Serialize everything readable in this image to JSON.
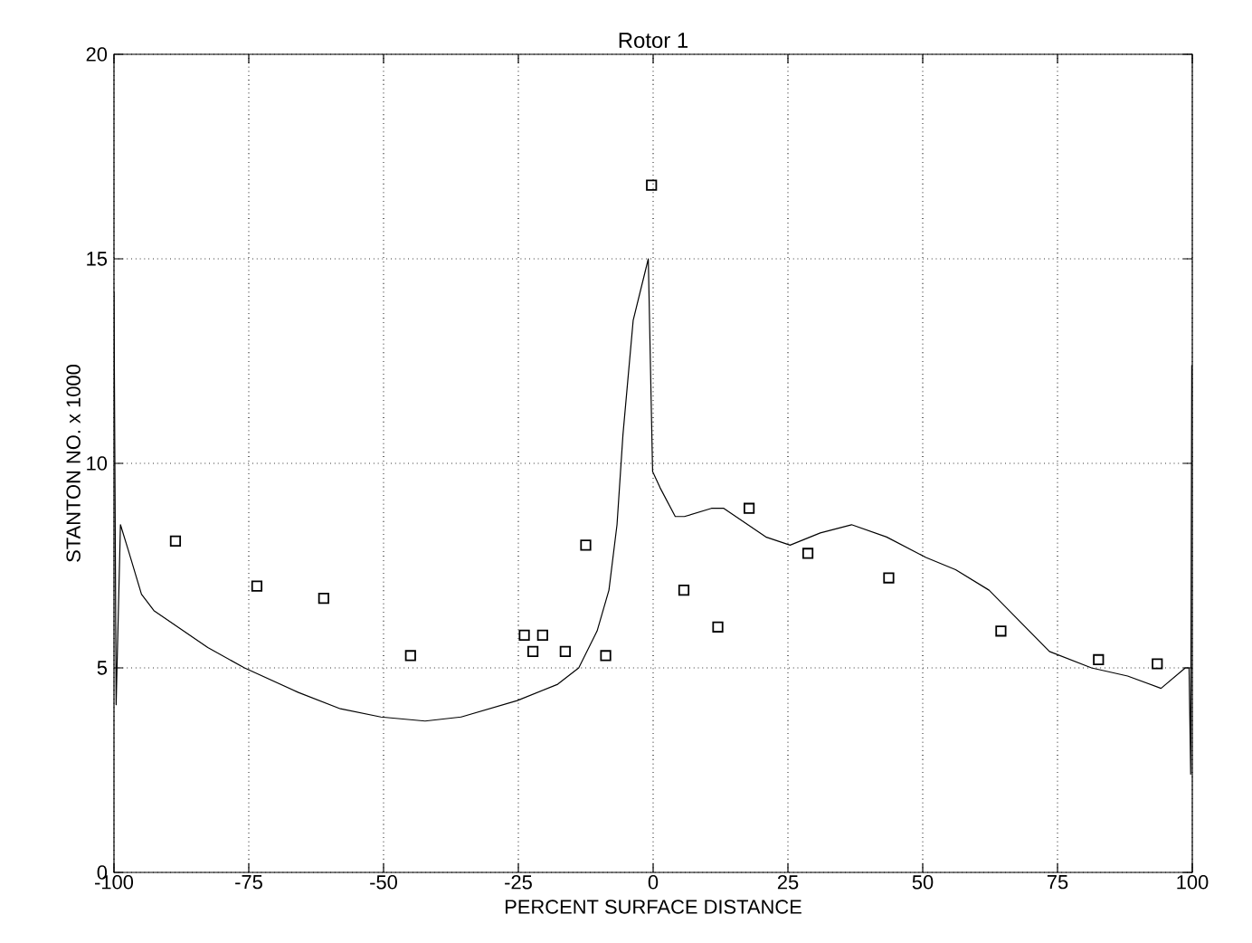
{
  "chart_data": {
    "type": "line",
    "title": "Rotor 1",
    "xlabel": "PERCENT SURFACE DISTANCE",
    "ylabel": "STANTON NO. x 1000",
    "xlim": [
      -100,
      100
    ],
    "ylim": [
      0,
      20
    ],
    "xticks": [
      -100,
      -75,
      -50,
      -25,
      0,
      25,
      50,
      75,
      100
    ],
    "yticks": [
      0,
      5,
      10,
      15,
      20
    ],
    "grid": true,
    "series": [
      {
        "color": "#000000",
        "marker": "none",
        "line_style": "solid",
        "x": [
          -100,
          -99.6,
          -98.8,
          -97.4,
          -94.9,
          -92.6,
          -82.6,
          -75.8,
          -65.8,
          -58.0,
          -50.5,
          -42.3,
          -35.6,
          -25.2,
          -17.7,
          -13.8,
          -10.4,
          -8.2,
          -6.7,
          -5.6,
          -3.7,
          -0.9,
          -0.1,
          1.3,
          4.1,
          5.8,
          10.8,
          13.1,
          20.9,
          25.4,
          31.0,
          36.8,
          43.3,
          50.6,
          56.1,
          62.3,
          73.5,
          81.3,
          88.0,
          94.2,
          98.7,
          99.4,
          99.7,
          99.9
        ],
        "values": [
          14.2,
          4.1,
          8.5,
          7.9,
          6.8,
          6.4,
          5.5,
          5.0,
          4.4,
          4.0,
          3.8,
          3.7,
          3.8,
          4.2,
          4.6,
          5.0,
          5.9,
          6.9,
          8.5,
          10.7,
          13.5,
          15.0,
          9.8,
          9.4,
          8.7,
          8.7,
          8.9,
          8.9,
          8.2,
          8.0,
          8.3,
          8.5,
          8.2,
          7.7,
          7.4,
          6.9,
          5.4,
          5.0,
          4.8,
          4.5,
          5.0,
          5.0,
          2.4,
          12.4
        ]
      },
      {
        "type": "scatter",
        "color": "#000000",
        "marker": "square",
        "x": [
          -88.6,
          -73.5,
          -61.1,
          -45.0,
          -23.9,
          -22.3,
          -20.5,
          -16.3,
          -12.5,
          -8.8,
          -0.3,
          5.7,
          12.0,
          17.8,
          28.7,
          43.7,
          64.5,
          82.6,
          93.5
        ],
        "values": [
          8.1,
          7.0,
          6.7,
          5.3,
          5.8,
          5.4,
          5.8,
          5.4,
          8.0,
          5.3,
          16.8,
          6.9,
          6.0,
          8.9,
          7.8,
          7.2,
          5.9,
          5.2,
          5.1
        ]
      }
    ]
  }
}
